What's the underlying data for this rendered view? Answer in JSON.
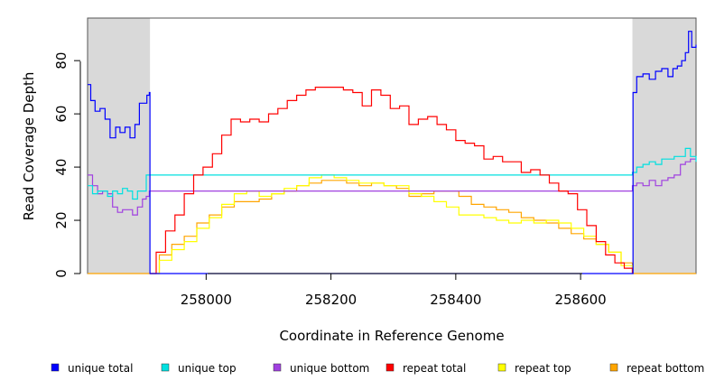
{
  "chart_data": {
    "type": "line",
    "title": "",
    "xlabel": "Coordinate in Reference Genome",
    "ylabel": "Read Coverage Depth",
    "xlim": [
      257810,
      258785
    ],
    "ylim": [
      0,
      96
    ],
    "x_ticks": [
      258000,
      258200,
      258400,
      258600
    ],
    "y_ticks": [
      0,
      20,
      40,
      60,
      80
    ],
    "shaded_regions": [
      [
        257810,
        257910
      ],
      [
        258683,
        258785
      ]
    ],
    "shaded_color": "#d9d9d9",
    "grid": false,
    "legend_position": "bottom",
    "series": [
      {
        "name": "unique total",
        "color": "#0000ff",
        "x": [
          257810,
          257815,
          257822,
          257830,
          257838,
          257846,
          257855,
          257862,
          257870,
          257878,
          257886,
          257893,
          257900,
          257905,
          257909,
          257910,
          258683,
          258684,
          258690,
          258700,
          258710,
          258720,
          258730,
          258740,
          258748,
          258755,
          258762,
          258768,
          258773,
          258778,
          258785
        ],
        "values": [
          71,
          65,
          61,
          62,
          58,
          51,
          55,
          53,
          55,
          51,
          56,
          64,
          64,
          67,
          68,
          0,
          0,
          68,
          74,
          75,
          73,
          76,
          77,
          74,
          77,
          78,
          80,
          83,
          91,
          85,
          86
        ]
      },
      {
        "name": "unique top",
        "color": "#00e0e0",
        "x": [
          257810,
          257818,
          257826,
          257834,
          257842,
          257850,
          257858,
          257866,
          257874,
          257882,
          257890,
          257898,
          257904,
          257909,
          258683,
          258690,
          258700,
          258710,
          258720,
          258730,
          258740,
          258750,
          258760,
          258768,
          258776,
          258785
        ],
        "values": [
          33,
          30,
          31,
          31,
          29,
          31,
          30,
          32,
          31,
          28,
          31,
          31,
          37,
          37,
          38,
          40,
          41,
          42,
          41,
          43,
          43,
          44,
          44,
          47,
          44,
          42
        ]
      },
      {
        "name": "unique bottom",
        "color": "#a040e0",
        "x": [
          257810,
          257818,
          257826,
          257834,
          257842,
          257850,
          257858,
          257866,
          257874,
          257882,
          257890,
          257898,
          257904,
          257909,
          258683,
          258690,
          258700,
          258710,
          258720,
          258730,
          258740,
          258750,
          258760,
          258768,
          258776,
          258785
        ],
        "values": [
          37,
          33,
          30,
          31,
          30,
          25,
          23,
          24,
          24,
          22,
          25,
          28,
          29,
          31,
          33,
          34,
          33,
          35,
          33,
          35,
          36,
          37,
          41,
          42,
          43,
          43
        ]
      },
      {
        "name": "repeat total",
        "color": "#ff0000",
        "x": [
          257910,
          257920,
          257935,
          257950,
          257965,
          257980,
          257995,
          258010,
          258025,
          258040,
          258055,
          258070,
          258085,
          258100,
          258115,
          258130,
          258145,
          258160,
          258175,
          258190,
          258205,
          258220,
          258235,
          258250,
          258265,
          258280,
          258295,
          258310,
          258325,
          258340,
          258355,
          258370,
          258385,
          258400,
          258415,
          258430,
          258445,
          258460,
          258475,
          258490,
          258505,
          258520,
          258535,
          258550,
          258565,
          258580,
          258595,
          258610,
          258625,
          258640,
          258655,
          258670,
          258683
        ],
        "values": [
          0,
          8,
          16,
          22,
          30,
          37,
          40,
          45,
          52,
          58,
          57,
          58,
          57,
          60,
          62,
          65,
          67,
          69,
          70,
          70,
          70,
          69,
          68,
          63,
          69,
          67,
          62,
          63,
          56,
          58,
          59,
          56,
          54,
          50,
          49,
          48,
          43,
          44,
          42,
          42,
          38,
          39,
          37,
          34,
          31,
          30,
          24,
          18,
          12,
          7,
          4,
          2,
          0
        ]
      },
      {
        "name": "repeat top",
        "color": "#ffff00",
        "x": [
          257910,
          257925,
          257945,
          257965,
          257985,
          258005,
          258025,
          258045,
          258065,
          258085,
          258105,
          258125,
          258145,
          258165,
          258185,
          258205,
          258225,
          258245,
          258265,
          258285,
          258305,
          258325,
          258345,
          258365,
          258385,
          258405,
          258425,
          258445,
          258465,
          258485,
          258505,
          258525,
          258545,
          258565,
          258585,
          258605,
          258625,
          258645,
          258665,
          258683
        ],
        "values": [
          0,
          5,
          9,
          12,
          17,
          21,
          26,
          30,
          31,
          29,
          30,
          32,
          33,
          36,
          37,
          36,
          35,
          34,
          34,
          33,
          33,
          30,
          29,
          27,
          25,
          22,
          22,
          21,
          20,
          19,
          20,
          19,
          20,
          19,
          17,
          14,
          11,
          8,
          3,
          0
        ]
      },
      {
        "name": "repeat bottom",
        "color": "#ffa500",
        "x": [
          257810,
          257909,
          257910,
          257925,
          257945,
          257965,
          257985,
          258005,
          258025,
          258045,
          258065,
          258085,
          258105,
          258125,
          258145,
          258165,
          258185,
          258205,
          258225,
          258245,
          258265,
          258285,
          258305,
          258325,
          258345,
          258365,
          258385,
          258405,
          258425,
          258445,
          258465,
          258485,
          258505,
          258525,
          258545,
          258565,
          258585,
          258605,
          258625,
          258645,
          258665,
          258683,
          258785
        ],
        "values": [
          0,
          0,
          0,
          7,
          11,
          14,
          19,
          22,
          25,
          27,
          27,
          28,
          30,
          31,
          33,
          34,
          35,
          35,
          34,
          33,
          34,
          33,
          32,
          29,
          30,
          31,
          31,
          29,
          26,
          25,
          24,
          23,
          21,
          20,
          19,
          17,
          15,
          13,
          11,
          8,
          4,
          0,
          0
        ]
      }
    ]
  }
}
